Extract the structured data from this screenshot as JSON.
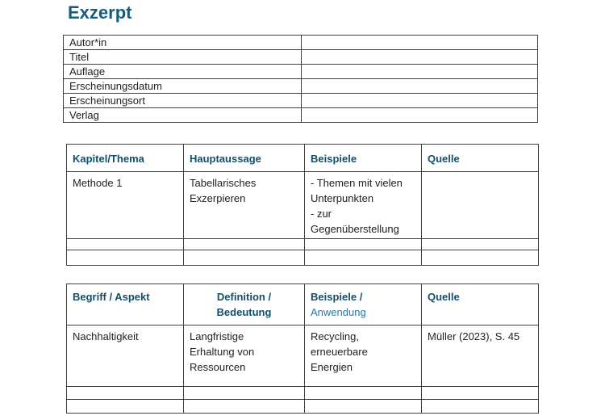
{
  "page": {
    "title": "Exzerpt"
  },
  "colors": {
    "title": "#175b7d",
    "table_header": "#134e6d",
    "table_header_light": "#2e74a1",
    "border": "#3f3f3f",
    "text": "#222222",
    "background": "#ffffff"
  },
  "bib_table": {
    "rows": [
      {
        "label": "Autor*in",
        "value": ""
      },
      {
        "label": "Titel",
        "value": ""
      },
      {
        "label": "Auflage",
        "value": ""
      },
      {
        "label": "Erscheinungsdatum",
        "value": ""
      },
      {
        "label": "Erscheinungsort",
        "value": ""
      },
      {
        "label": "Verlag",
        "value": ""
      }
    ]
  },
  "chapter_table": {
    "headers": [
      "Kapitel/Thema",
      "Hauptaussage",
      "Beispiele",
      "Quelle"
    ],
    "rows": [
      [
        "Methode 1",
        "Tabellarisches\nExzerpieren",
        "- Themen mit vielen\nUnterpunkten\n- zur\nGegenüberstellung",
        ""
      ],
      [
        "",
        "",
        "",
        ""
      ],
      [
        "",
        "",
        "",
        ""
      ]
    ]
  },
  "term_table": {
    "headers": [
      {
        "line1": "Begriff / Aspekt"
      },
      {
        "line1": "Definition /",
        "line2": "Bedeutung"
      },
      {
        "line1": "Beispiele /",
        "line2": "Anwendung"
      },
      {
        "line1": "Quelle"
      }
    ],
    "rows": [
      [
        "Nachhaltigkeit",
        "Langfristige\nErhaltung von\nRessourcen",
        "Recycling,\nerneuerbare\nEnergien",
        "Müller (2023), S. 45"
      ],
      [
        "",
        "",
        "",
        ""
      ],
      [
        "",
        "",
        "",
        ""
      ]
    ]
  }
}
